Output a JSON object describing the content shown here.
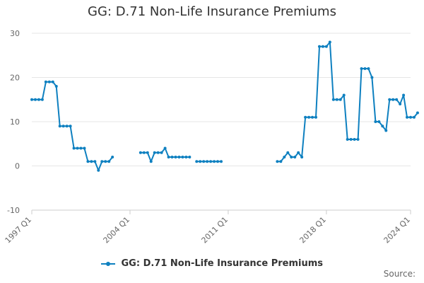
{
  "chart_data": {
    "type": "line",
    "title": "GG: D.71 Non-Life Insurance Premiums",
    "xlabel": "",
    "ylabel": "",
    "ylim": [
      -10,
      30
    ],
    "yticks": [
      -10,
      0,
      10,
      20,
      30
    ],
    "xticks": [
      "1997 Q1",
      "2004 Q1",
      "2011 Q1",
      "2018 Q1",
      "2024 Q1"
    ],
    "grid": true,
    "legend": "bottom",
    "series": [
      {
        "name": "GG: D.71 Non-Life Insurance Premiums",
        "color": "#0e80c0",
        "points": [
          [
            "1997 Q1",
            15
          ],
          [
            "1997 Q2",
            15
          ],
          [
            "1997 Q3",
            15
          ],
          [
            "1997 Q4",
            15
          ],
          [
            "1998 Q1",
            19
          ],
          [
            "1998 Q2",
            19
          ],
          [
            "1998 Q3",
            19
          ],
          [
            "1998 Q4",
            18
          ],
          [
            "1999 Q1",
            9
          ],
          [
            "1999 Q2",
            9
          ],
          [
            "1999 Q3",
            9
          ],
          [
            "1999 Q4",
            9
          ],
          [
            "2000 Q1",
            4
          ],
          [
            "2000 Q2",
            4
          ],
          [
            "2000 Q3",
            4
          ],
          [
            "2000 Q4",
            4
          ],
          [
            "2001 Q1",
            1
          ],
          [
            "2001 Q2",
            1
          ],
          [
            "2001 Q3",
            1
          ],
          [
            "2001 Q4",
            -1
          ],
          [
            "2002 Q1",
            1
          ],
          [
            "2002 Q2",
            1
          ],
          [
            "2002 Q3",
            1
          ],
          [
            "2002 Q4",
            2
          ],
          [
            "2003 Q1",
            null
          ],
          [
            "2003 Q2",
            null
          ],
          [
            "2003 Q3",
            null
          ],
          [
            "2003 Q4",
            null
          ],
          [
            "2004 Q1",
            null
          ],
          [
            "2004 Q2",
            null
          ],
          [
            "2004 Q3",
            null
          ],
          [
            "2004 Q4",
            3
          ],
          [
            "2005 Q1",
            3
          ],
          [
            "2005 Q2",
            3
          ],
          [
            "2005 Q3",
            1
          ],
          [
            "2005 Q4",
            3
          ],
          [
            "2006 Q1",
            3
          ],
          [
            "2006 Q2",
            3
          ],
          [
            "2006 Q3",
            4
          ],
          [
            "2006 Q4",
            2
          ],
          [
            "2007 Q1",
            2
          ],
          [
            "2007 Q2",
            2
          ],
          [
            "2007 Q3",
            2
          ],
          [
            "2007 Q4",
            2
          ],
          [
            "2008 Q1",
            2
          ],
          [
            "2008 Q2",
            2
          ],
          [
            "2008 Q3",
            null
          ],
          [
            "2008 Q4",
            1
          ],
          [
            "2009 Q1",
            1
          ],
          [
            "2009 Q2",
            1
          ],
          [
            "2009 Q3",
            1
          ],
          [
            "2009 Q4",
            1
          ],
          [
            "2010 Q1",
            1
          ],
          [
            "2010 Q2",
            1
          ],
          [
            "2010 Q3",
            1
          ],
          [
            "2010 Q4",
            null
          ],
          [
            "2011 Q1",
            null
          ],
          [
            "2011 Q2",
            null
          ],
          [
            "2011 Q3",
            null
          ],
          [
            "2011 Q4",
            null
          ],
          [
            "2012 Q1",
            null
          ],
          [
            "2012 Q2",
            null
          ],
          [
            "2012 Q3",
            null
          ],
          [
            "2012 Q4",
            null
          ],
          [
            "2013 Q1",
            null
          ],
          [
            "2013 Q2",
            null
          ],
          [
            "2013 Q3",
            null
          ],
          [
            "2013 Q4",
            null
          ],
          [
            "2014 Q1",
            null
          ],
          [
            "2014 Q2",
            null
          ],
          [
            "2014 Q3",
            1
          ],
          [
            "2014 Q4",
            1
          ],
          [
            "2015 Q1",
            2
          ],
          [
            "2015 Q2",
            3
          ],
          [
            "2015 Q3",
            2
          ],
          [
            "2015 Q4",
            2
          ],
          [
            "2016 Q1",
            3
          ],
          [
            "2016 Q2",
            2
          ],
          [
            "2016 Q3",
            11
          ],
          [
            "2016 Q4",
            11
          ],
          [
            "2017 Q1",
            11
          ],
          [
            "2017 Q2",
            11
          ],
          [
            "2017 Q3",
            27
          ],
          [
            "2017 Q4",
            27
          ],
          [
            "2018 Q1",
            27
          ],
          [
            "2018 Q2",
            28
          ],
          [
            "2018 Q3",
            15
          ],
          [
            "2018 Q4",
            15
          ],
          [
            "2019 Q1",
            15
          ],
          [
            "2019 Q2",
            16
          ],
          [
            "2019 Q3",
            6
          ],
          [
            "2019 Q4",
            6
          ],
          [
            "2020 Q1",
            6
          ],
          [
            "2020 Q2",
            6
          ],
          [
            "2020 Q3",
            22
          ],
          [
            "2020 Q4",
            22
          ],
          [
            "2021 Q1",
            22
          ],
          [
            "2021 Q2",
            20
          ],
          [
            "2021 Q3",
            10
          ],
          [
            "2021 Q4",
            10
          ],
          [
            "2022 Q1",
            9
          ],
          [
            "2022 Q2",
            8
          ],
          [
            "2022 Q3",
            15
          ],
          [
            "2022 Q4",
            15
          ],
          [
            "2023 Q1",
            15
          ],
          [
            "2023 Q2",
            14
          ],
          [
            "2023 Q3",
            16
          ],
          [
            "2023 Q4",
            11
          ],
          [
            "2024 Q1",
            11
          ],
          [
            "2024 Q2",
            11
          ],
          [
            "2024 Q3",
            12
          ]
        ]
      }
    ]
  },
  "footer": {
    "source_label": "Source:"
  }
}
